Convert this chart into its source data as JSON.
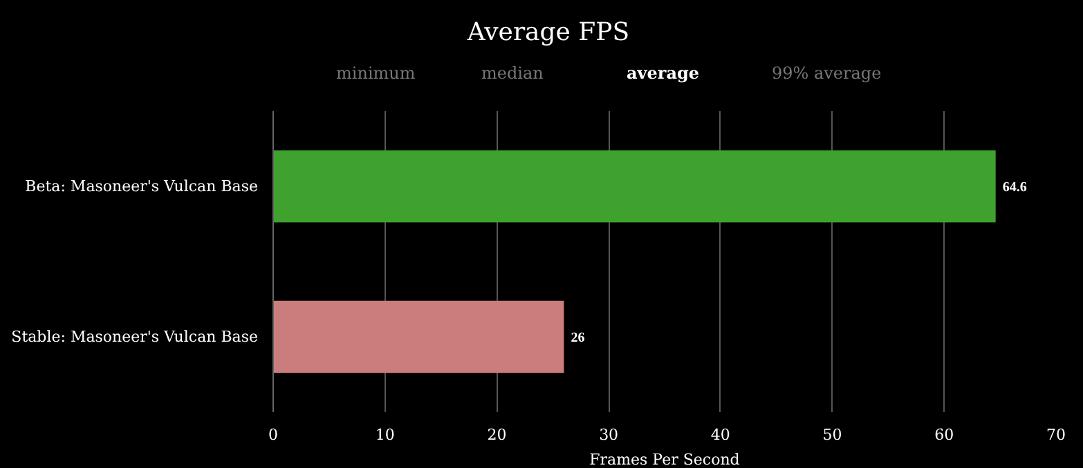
{
  "chart_data": {
    "type": "bar",
    "orientation": "horizontal",
    "title": "Average FPS",
    "xlabel": "Frames Per Second",
    "categories": [
      "Beta: Masoneer's Vulcan Base",
      "Stable: Masoneer's Vulcan Base"
    ],
    "values": [
      64.6,
      26
    ],
    "colors": [
      "#3fa22f",
      "#cb7c7c"
    ],
    "xlim": [
      0,
      70
    ],
    "xticks": [
      0,
      10,
      20,
      30,
      40,
      50,
      60,
      70
    ],
    "grid": "x",
    "data_labels": true,
    "annotations": [
      "minimum",
      "median",
      "average",
      "99% average"
    ]
  }
}
